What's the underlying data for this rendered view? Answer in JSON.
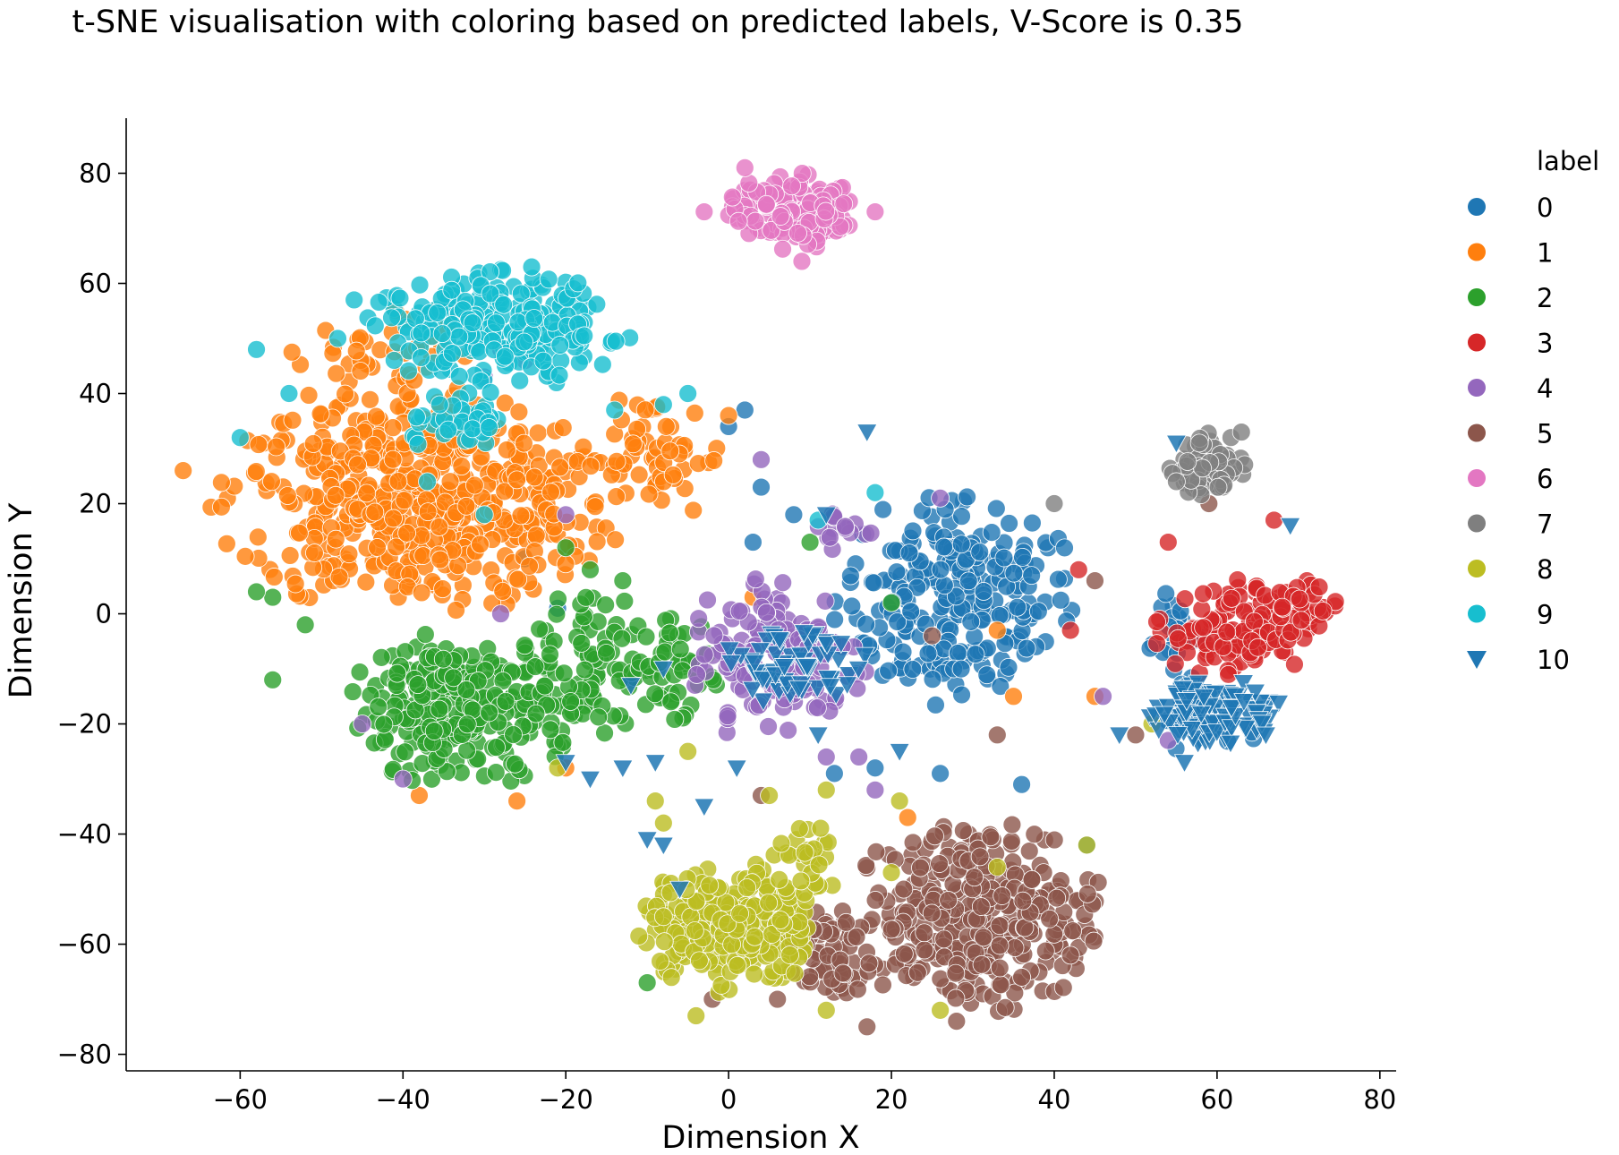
{
  "chart_data": {
    "type": "scatter",
    "title": "t-SNE visualisation with coloring based on predicted labels, V-Score is 0.35",
    "xlabel": "Dimension X",
    "ylabel": "Dimension Y",
    "xlim": [
      -74,
      82
    ],
    "ylim": [
      -83,
      90
    ],
    "xticks": [
      -60,
      -40,
      -20,
      0,
      20,
      40,
      60,
      80
    ],
    "yticks": [
      -80,
      -60,
      -40,
      -20,
      0,
      20,
      40,
      60,
      80
    ],
    "xtick_labels": [
      "−60",
      "−40",
      "−20",
      "0",
      "20",
      "40",
      "60",
      "80"
    ],
    "ytick_labels": [
      "−80",
      "−60",
      "−40",
      "−20",
      "0",
      "20",
      "40",
      "60",
      "80"
    ],
    "grid": false,
    "legend": {
      "title": "label",
      "placement": "right"
    },
    "series": [
      {
        "name": "0",
        "color": "#1f77b4",
        "marker": "circle",
        "clusters": [
          {
            "cx": 28,
            "cy": 3,
            "rx": 15,
            "ry": 21,
            "n": 240
          },
          {
            "cx": 55,
            "cy": -5,
            "rx": 4,
            "ry": 9,
            "n": 25
          },
          {
            "cx": 58,
            "cy": -22,
            "rx": 7,
            "ry": 4,
            "n": 15
          }
        ],
        "extra_points": [
          [
            4,
            23
          ],
          [
            8,
            18
          ],
          [
            -21,
            1
          ],
          [
            -25,
            10
          ],
          [
            3,
            13
          ],
          [
            13,
            -29
          ],
          [
            18,
            -28
          ],
          [
            26,
            -29
          ],
          [
            36,
            -31
          ],
          [
            44,
            -42
          ],
          [
            2,
            37
          ],
          [
            0,
            34
          ]
        ]
      },
      {
        "name": "1",
        "color": "#ff7f0e",
        "marker": "circle",
        "clusters": [
          {
            "cx": -38,
            "cy": 20,
            "rx": 25,
            "ry": 20,
            "n": 520
          },
          {
            "cx": -42,
            "cy": 45,
            "rx": 12,
            "ry": 12,
            "n": 50
          },
          {
            "cx": -10,
            "cy": 28,
            "rx": 10,
            "ry": 12,
            "n": 60
          }
        ],
        "extra_points": [
          [
            -67,
            26
          ],
          [
            -38,
            -33
          ],
          [
            -26,
            -34
          ],
          [
            -20,
            -28
          ],
          [
            0,
            36
          ],
          [
            22,
            -37
          ],
          [
            33,
            -3
          ],
          [
            35,
            -15
          ],
          [
            45,
            -15
          ],
          [
            3,
            3
          ]
        ]
      },
      {
        "name": "2",
        "color": "#2ca02c",
        "marker": "circle",
        "clusters": [
          {
            "cx": -33,
            "cy": -18,
            "rx": 14,
            "ry": 15,
            "n": 260
          },
          {
            "cx": -17,
            "cy": -8,
            "rx": 10,
            "ry": 14,
            "n": 80
          },
          {
            "cx": -6,
            "cy": -10,
            "rx": 6,
            "ry": 12,
            "n": 40
          }
        ],
        "extra_points": [
          [
            -56,
            3
          ],
          [
            -58,
            4
          ],
          [
            -52,
            -2
          ],
          [
            -56,
            -12
          ],
          [
            -20,
            12
          ],
          [
            -17,
            8
          ],
          [
            -13,
            6
          ],
          [
            10,
            13
          ],
          [
            20,
            2
          ],
          [
            -10,
            -67
          ]
        ]
      },
      {
        "name": "3",
        "color": "#d62728",
        "marker": "circle",
        "clusters": [
          {
            "cx": 62,
            "cy": -3,
            "rx": 10,
            "ry": 9,
            "n": 130
          },
          {
            "cx": 71,
            "cy": 2,
            "rx": 4,
            "ry": 5,
            "n": 25
          }
        ],
        "extra_points": [
          [
            67,
            17
          ],
          [
            54,
            13
          ],
          [
            42,
            -3
          ],
          [
            43,
            8
          ]
        ]
      },
      {
        "name": "4",
        "color": "#9467bd",
        "marker": "circle",
        "clusters": [
          {
            "cx": 6,
            "cy": -8,
            "rx": 11,
            "ry": 16,
            "n": 140
          },
          {
            "cx": 14,
            "cy": 15,
            "rx": 4,
            "ry": 4,
            "n": 15
          }
        ],
        "extra_points": [
          [
            -25,
            46
          ],
          [
            -20,
            18
          ],
          [
            -28,
            0
          ],
          [
            -45,
            -20
          ],
          [
            -40,
            -30
          ],
          [
            4,
            28
          ],
          [
            12,
            -26
          ],
          [
            16,
            -26
          ],
          [
            18,
            -32
          ],
          [
            26,
            21
          ],
          [
            54,
            -23
          ],
          [
            46,
            -15
          ],
          [
            -30,
            43
          ],
          [
            -28,
            48
          ]
        ]
      },
      {
        "name": "5",
        "color": "#8c564b",
        "marker": "circle",
        "clusters": [
          {
            "cx": 30,
            "cy": -55,
            "rx": 16,
            "ry": 18,
            "n": 310
          },
          {
            "cx": 12,
            "cy": -62,
            "rx": 6,
            "ry": 10,
            "n": 60
          }
        ],
        "extra_points": [
          [
            -2,
            -70
          ],
          [
            6,
            -70
          ],
          [
            17,
            -75
          ],
          [
            28,
            -74
          ],
          [
            36,
            -66
          ],
          [
            4,
            -33
          ],
          [
            42,
            -62
          ],
          [
            33,
            -22
          ],
          [
            25,
            -4
          ],
          [
            50,
            -22
          ],
          [
            59,
            20
          ],
          [
            45,
            6
          ]
        ]
      },
      {
        "name": "6",
        "color": "#e377c2",
        "marker": "circle",
        "clusters": [
          {
            "cx": 8,
            "cy": 73,
            "rx": 8,
            "ry": 7,
            "n": 150
          }
        ],
        "extra_points": [
          [
            -3,
            73
          ],
          [
            2,
            81
          ],
          [
            9,
            64
          ],
          [
            18,
            73
          ]
        ]
      },
      {
        "name": "7",
        "color": "#7f7f7f",
        "marker": "circle",
        "clusters": [
          {
            "cx": 59,
            "cy": 27,
            "rx": 5,
            "ry": 6,
            "n": 70
          }
        ],
        "extra_points": [
          [
            40,
            20
          ],
          [
            55,
            24
          ],
          [
            63,
            33
          ]
        ]
      },
      {
        "name": "8",
        "color": "#bcbd22",
        "marker": "circle",
        "clusters": [
          {
            "cx": 0,
            "cy": -57,
            "rx": 11,
            "ry": 12,
            "n": 250
          },
          {
            "cx": 10,
            "cy": -45,
            "rx": 5,
            "ry": 7,
            "n": 30
          }
        ],
        "extra_points": [
          [
            -9,
            -34
          ],
          [
            5,
            -33
          ],
          [
            12,
            -32
          ],
          [
            21,
            -34
          ],
          [
            -8,
            -55
          ],
          [
            12,
            -72
          ],
          [
            26,
            -72
          ],
          [
            33,
            -46
          ],
          [
            44,
            -42
          ],
          [
            52,
            -20
          ],
          [
            -4,
            -73
          ],
          [
            20,
            -47
          ],
          [
            -21,
            -28
          ],
          [
            -5,
            -25
          ],
          [
            -8,
            -38
          ]
        ]
      },
      {
        "name": "9",
        "color": "#17becf",
        "marker": "circle",
        "clusters": [
          {
            "cx": -28,
            "cy": 52,
            "rx": 17,
            "ry": 11,
            "n": 230
          },
          {
            "cx": -33,
            "cy": 35,
            "rx": 8,
            "ry": 6,
            "n": 40
          }
        ],
        "extra_points": [
          [
            -60,
            32
          ],
          [
            -54,
            40
          ],
          [
            -58,
            48
          ],
          [
            -48,
            50
          ],
          [
            -37,
            24
          ],
          [
            -14,
            37
          ],
          [
            -8,
            38
          ],
          [
            -30,
            18
          ],
          [
            11,
            17
          ],
          [
            18,
            22
          ],
          [
            -46,
            57
          ],
          [
            -5,
            40
          ]
        ]
      },
      {
        "name": "10",
        "color": "#1f77b4",
        "marker": "triangle-down",
        "clusters": [
          {
            "cx": 8,
            "cy": -10,
            "rx": 10,
            "ry": 8,
            "n": 60
          },
          {
            "cx": 60,
            "cy": -18,
            "rx": 9,
            "ry": 6,
            "n": 110
          }
        ],
        "extra_points": [
          [
            -17,
            -30
          ],
          [
            -20,
            -27
          ],
          [
            -13,
            -28
          ],
          [
            -9,
            -27
          ],
          [
            -3,
            -35
          ],
          [
            -10,
            -41
          ],
          [
            -8,
            -42
          ],
          [
            -6,
            -50
          ],
          [
            1,
            -28
          ],
          [
            -8,
            -10
          ],
          [
            -12,
            -13
          ],
          [
            21,
            -25
          ],
          [
            11,
            -22
          ],
          [
            17,
            33
          ],
          [
            12,
            18
          ],
          [
            55,
            31
          ],
          [
            69,
            16
          ],
          [
            48,
            -22
          ],
          [
            56,
            -27
          ],
          [
            66,
            -22
          ]
        ]
      }
    ]
  }
}
